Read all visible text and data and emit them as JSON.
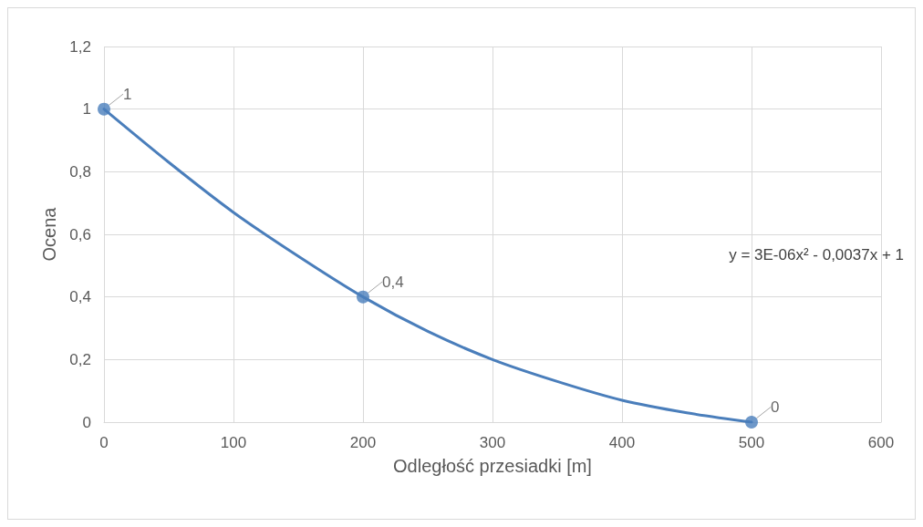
{
  "chart_data": {
    "type": "scatter",
    "xlabel": "Odległość przesiadki [m]",
    "ylabel": "Ocena",
    "xlim": [
      0,
      600
    ],
    "xticks": [
      0,
      100,
      200,
      300,
      400,
      500,
      600
    ],
    "ylim": [
      0,
      1.2
    ],
    "yticks": [
      0,
      {
        "value": 0.2,
        "label": "0,2"
      },
      {
        "value": 0.4,
        "label": "0,4"
      },
      {
        "value": 0.6,
        "label": "0,6"
      },
      {
        "value": 0.8,
        "label": "0,8"
      },
      1,
      {
        "value": 1.2,
        "label": "1,2"
      }
    ],
    "grid": true,
    "marker": "circle",
    "series": [
      {
        "type": "line",
        "color": "#4a7ebb",
        "marker": "none",
        "x": [
          0,
          50,
          100,
          150,
          200,
          250,
          300,
          350,
          400,
          450,
          500
        ],
        "values": [
          1,
          0.83,
          0.67,
          0.53,
          0.4,
          0.29,
          0.2,
          0.13,
          0.07,
          0.03,
          0
        ]
      },
      {
        "color": "#4a7ebb",
        "x": [
          0,
          200,
          500
        ],
        "values": [
          1,
          0.4,
          0
        ],
        "value_labels": [
          "1",
          "0,4",
          "0"
        ]
      }
    ],
    "annotations": [
      "y = 3E-06x² - 0,0037x + 1"
    ]
  }
}
